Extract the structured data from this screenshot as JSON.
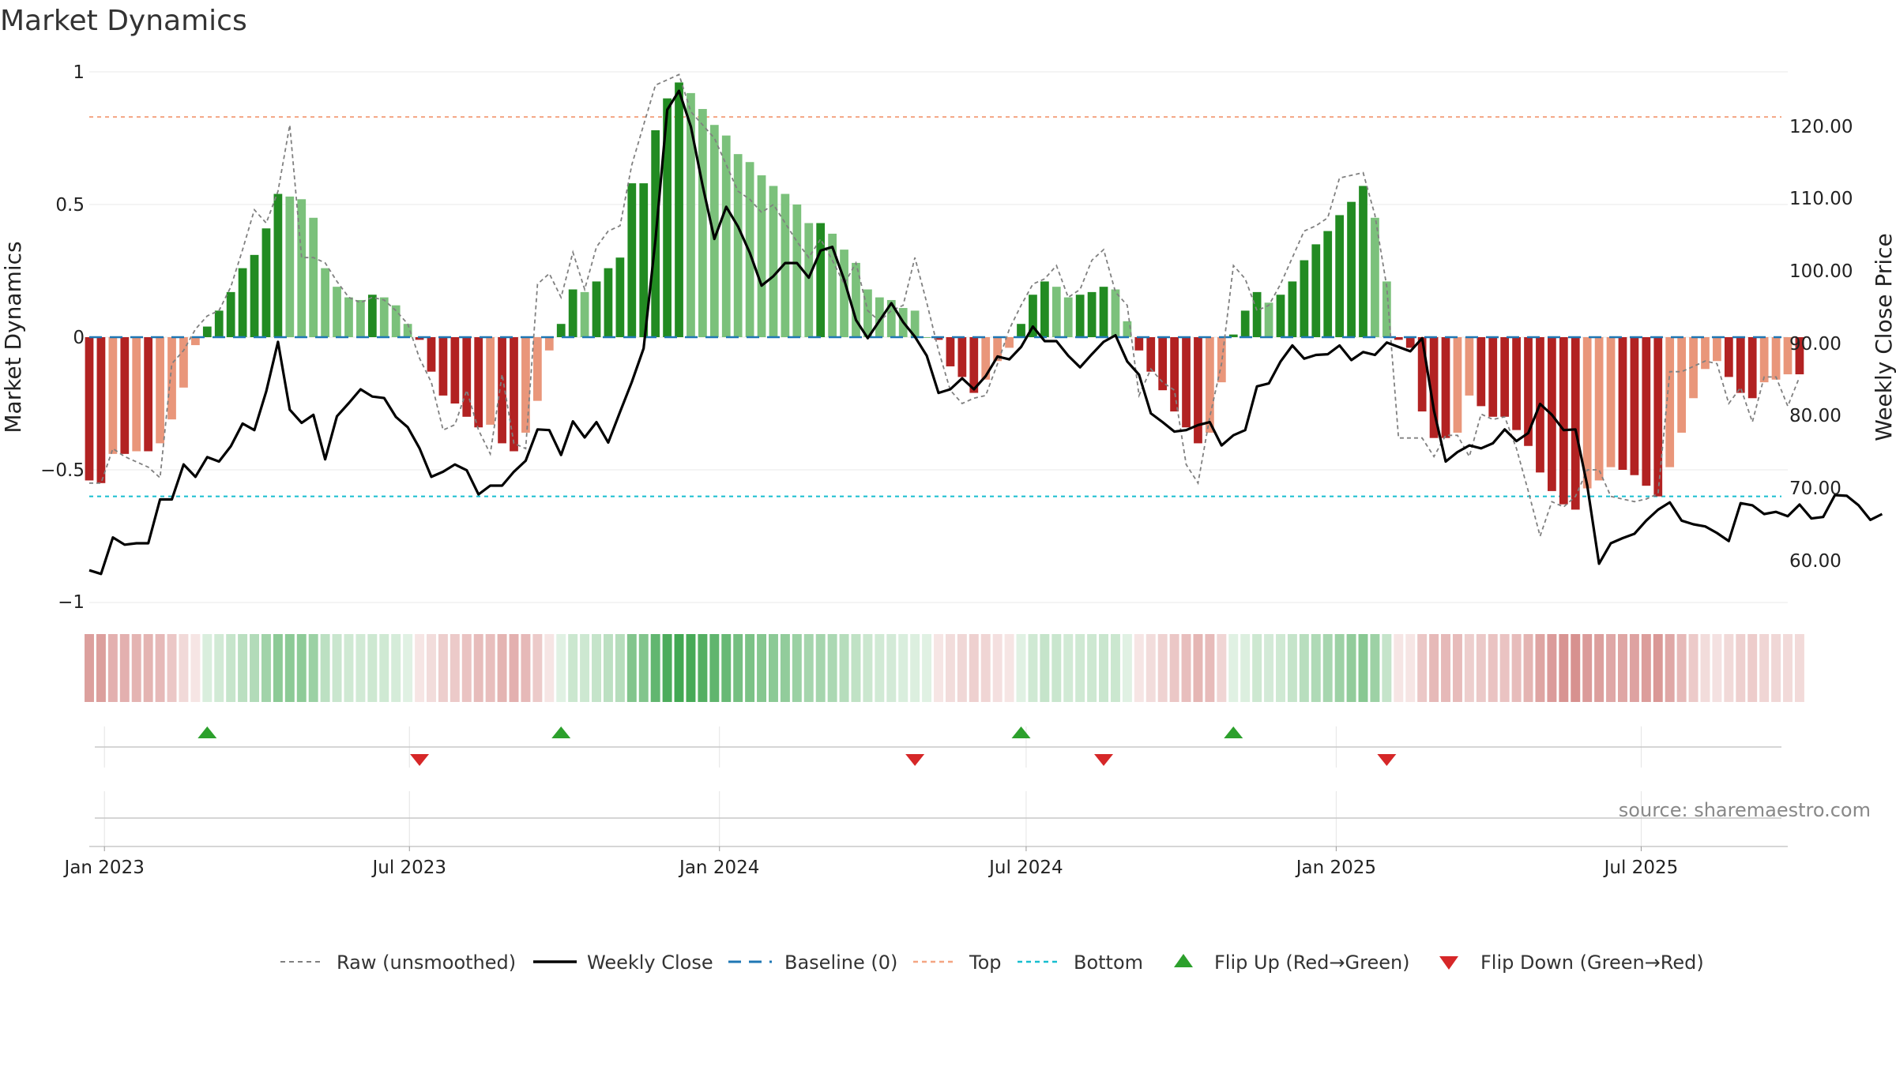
{
  "chart_data": {
    "type": "bar",
    "title": "Market Dynamics",
    "ylabel": "Market Dynamics",
    "y2label": "Weekly Close Price",
    "ylim": [
      -1,
      1
    ],
    "y2lim": [
      53.3,
      125.9
    ],
    "yticks": [
      "1",
      "0.5",
      "0",
      "−0.5",
      "−1"
    ],
    "y2ticks": [
      "120.00",
      "110.00",
      "100.00",
      "90.00",
      "80.00",
      "70.00",
      "60.00"
    ],
    "xticks": [
      "Jan 2023",
      "Jul 2023",
      "Jan 2024",
      "Jul 2024",
      "Jan 2025",
      "Jul 2025"
    ],
    "xtick_dates": [
      "2023-01-01",
      "2023-07-01",
      "2024-01-01",
      "2024-07-01",
      "2025-01-01",
      "2025-07-01"
    ],
    "start_date": "2022-12-23",
    "x_end_date": "2025-09-26",
    "top_level": 0.83,
    "bottom_level": -0.6,
    "legend": [
      "Raw (unsmoothed)",
      "Weekly Close",
      "Baseline (0)",
      "Top",
      "Bottom",
      "Flip Up (Red→Green)",
      "Flip Down (Green→Red)"
    ],
    "source": "source: sharemaestro.com",
    "colors": {
      "strong_green": "#228b22",
      "light_green": "#7bc17b",
      "strong_red": "#b22222",
      "light_red": "#e9967a",
      "baseline": "#1f77b4",
      "top": "#f4a582",
      "bottom": "#17becf",
      "flip_up": "#2ca02c",
      "flip_down": "#d62728"
    },
    "dynamics": [
      -0.54,
      -0.55,
      -0.44,
      -0.44,
      -0.43,
      -0.43,
      -0.4,
      -0.31,
      -0.19,
      -0.03,
      0.04,
      0.1,
      0.17,
      0.26,
      0.31,
      0.41,
      0.54,
      0.53,
      0.52,
      0.45,
      0.26,
      0.19,
      0.15,
      0.14,
      0.16,
      0.15,
      0.12,
      0.05,
      -0.01,
      -0.13,
      -0.22,
      -0.25,
      -0.3,
      -0.34,
      -0.33,
      -0.4,
      -0.43,
      -0.36,
      -0.24,
      -0.05,
      0.05,
      0.18,
      0.17,
      0.21,
      0.26,
      0.3,
      0.58,
      0.58,
      0.78,
      0.9,
      0.96,
      0.92,
      0.86,
      0.8,
      0.76,
      0.69,
      0.66,
      0.61,
      0.57,
      0.54,
      0.5,
      0.43,
      0.43,
      0.39,
      0.33,
      0.28,
      0.18,
      0.15,
      0.14,
      0.11,
      0.1,
      0,
      -0.01,
      -0.11,
      -0.15,
      -0.21,
      -0.16,
      -0.09,
      -0.04,
      0.05,
      0.16,
      0.21,
      0.19,
      0.15,
      0.16,
      0.17,
      0.19,
      0.18,
      0.06,
      -0.05,
      -0.13,
      -0.2,
      -0.28,
      -0.34,
      -0.4,
      -0.36,
      -0.17,
      0.01,
      0.1,
      0.17,
      0.13,
      0.16,
      0.21,
      0.29,
      0.35,
      0.4,
      0.46,
      0.51,
      0.57,
      0.45,
      0.21,
      -0.01,
      -0.04,
      -0.28,
      -0.38,
      -0.38,
      -0.36,
      -0.22,
      -0.26,
      -0.3,
      -0.3,
      -0.35,
      -0.41,
      -0.51,
      -0.58,
      -0.63,
      -0.65,
      -0.57,
      -0.54,
      -0.49,
      -0.5,
      -0.52,
      -0.56,
      -0.6,
      -0.49,
      -0.36,
      -0.23,
      -0.12,
      -0.09,
      -0.15,
      -0.21,
      -0.23,
      -0.17,
      -0.16,
      -0.14,
      -0.14
    ],
    "raw": [
      -0.55,
      -0.55,
      -0.42,
      -0.45,
      -0.47,
      -0.49,
      -0.53,
      -0.1,
      -0.05,
      0.03,
      0.08,
      0.1,
      0.19,
      0.33,
      0.48,
      0.43,
      0.55,
      0.8,
      0.3,
      0.3,
      0.28,
      0.21,
      0.15,
      0.13,
      0.15,
      0.14,
      0.1,
      0.05,
      -0.08,
      -0.17,
      -0.35,
      -0.33,
      -0.2,
      -0.35,
      -0.44,
      -0.14,
      -0.4,
      -0.42,
      0.2,
      0.24,
      0.15,
      0.32,
      0.18,
      0.34,
      0.4,
      0.42,
      0.65,
      0.8,
      0.95,
      0.97,
      0.99,
      0.85,
      0.8,
      0.75,
      0.65,
      0.55,
      0.52,
      0.47,
      0.5,
      0.43,
      0.36,
      0.3,
      0.37,
      0.29,
      0.2,
      0.28,
      0.1,
      0.06,
      0.1,
      0.12,
      0.3,
      0.13,
      -0.05,
      -0.2,
      -0.25,
      -0.23,
      -0.22,
      -0.1,
      0.03,
      0.12,
      0.2,
      0.22,
      0.27,
      0.15,
      0.18,
      0.29,
      0.33,
      0.17,
      0.12,
      -0.22,
      -0.12,
      -0.17,
      -0.2,
      -0.48,
      -0.55,
      -0.3,
      -0.1,
      0.27,
      0.22,
      0.1,
      0.12,
      0.2,
      0.3,
      0.4,
      0.42,
      0.45,
      0.6,
      0.61,
      0.62,
      0.46,
      0.19,
      -0.38,
      -0.38,
      -0.38,
      -0.45,
      -0.37,
      -0.37,
      -0.45,
      -0.29,
      -0.31,
      -0.3,
      -0.42,
      -0.58,
      -0.75,
      -0.62,
      -0.64,
      -0.6,
      -0.5,
      -0.5,
      -0.6,
      -0.61,
      -0.62,
      -0.61,
      -0.59,
      -0.13,
      -0.13,
      -0.11,
      -0.09,
      -0.1,
      -0.25,
      -0.19,
      -0.32,
      -0.15,
      -0.15,
      -0.26,
      -0.15
    ],
    "close": [
      57.5,
      57,
      62,
      61,
      61.2,
      61.2,
      67.2,
      67.2,
      72,
      70.3,
      73,
      72.4,
      74.5,
      77.6,
      76.7,
      82,
      88.8,
      79.5,
      77.7,
      78.8,
      72.7,
      78.6,
      80.4,
      82.3,
      81.3,
      81.1,
      78.5,
      77.1,
      74.2,
      70.3,
      71,
      72,
      71.2,
      67.9,
      69.1,
      69.1,
      71,
      72.5,
      76.8,
      76.7,
      73.3,
      77.9,
      75.7,
      77.8,
      75,
      79.2,
      83.3,
      87.9,
      102.8,
      120.6,
      123.2,
      118.3,
      110.2,
      102.9,
      107.3,
      104.6,
      101,
      96.5,
      97.8,
      99.6,
      99.6,
      97.6,
      101.3,
      101.8,
      97.3,
      91.8,
      89.3,
      91.7,
      94.1,
      91.5,
      89.5,
      86.9,
      81.8,
      82.3,
      83.8,
      82.3,
      84.1,
      86.8,
      86.4,
      88.1,
      90.9,
      88.9,
      88.9,
      86.9,
      85.3,
      87.1,
      88.8,
      89.7,
      86.1,
      84.3,
      79,
      77.8,
      76.5,
      76.7,
      77.4,
      77.8,
      74.6,
      76,
      76.7,
      82.7,
      83.1,
      86.1,
      88.3,
      86.5,
      87,
      87.1,
      88.3,
      86.3,
      87.4,
      87,
      88.7,
      88.1,
      87.5,
      89.3,
      79.4,
      72.4,
      73.7,
      74.6,
      74.2,
      74.9,
      76.8,
      75.2,
      76.3,
      80.3,
      78.8,
      76.7,
      76.8,
      69.1,
      58.4,
      61.2,
      61.9,
      62.5,
      64.3,
      65.8,
      66.8,
      64.3,
      63.8,
      63.5,
      62.6,
      61.5,
      66.7,
      66.4,
      65.2,
      65.5,
      64.9,
      66.5,
      64.6,
      64.8,
      67.8,
      67.7,
      66.4,
      64.4,
      65.2
    ],
    "heatmap_opacity": [
      0.55,
      0.55,
      0.45,
      0.45,
      0.43,
      0.43,
      0.4,
      0.32,
      0.22,
      0.15,
      0.18,
      0.22,
      0.27,
      0.33,
      0.37,
      0.45,
      0.55,
      0.55,
      0.54,
      0.48,
      0.32,
      0.26,
      0.23,
      0.22,
      0.24,
      0.23,
      0.2,
      0.15,
      0.15,
      0.2,
      0.28,
      0.3,
      0.34,
      0.38,
      0.37,
      0.43,
      0.45,
      0.4,
      0.3,
      0.15,
      0.15,
      0.25,
      0.24,
      0.28,
      0.32,
      0.35,
      0.6,
      0.6,
      0.75,
      0.85,
      0.9,
      0.88,
      0.82,
      0.76,
      0.72,
      0.66,
      0.63,
      0.58,
      0.55,
      0.52,
      0.48,
      0.43,
      0.43,
      0.4,
      0.35,
      0.3,
      0.25,
      0.22,
      0.21,
      0.18,
      0.17,
      0.15,
      0.15,
      0.2,
      0.23,
      0.27,
      0.24,
      0.18,
      0.15,
      0.15,
      0.23,
      0.28,
      0.26,
      0.22,
      0.23,
      0.24,
      0.26,
      0.25,
      0.15,
      0.15,
      0.2,
      0.26,
      0.32,
      0.37,
      0.42,
      0.39,
      0.24,
      0.15,
      0.17,
      0.24,
      0.21,
      0.23,
      0.28,
      0.34,
      0.38,
      0.42,
      0.47,
      0.52,
      0.57,
      0.47,
      0.28,
      0.15,
      0.15,
      0.32,
      0.4,
      0.4,
      0.39,
      0.28,
      0.31,
      0.34,
      0.34,
      0.38,
      0.43,
      0.52,
      0.57,
      0.61,
      0.63,
      0.57,
      0.55,
      0.5,
      0.51,
      0.53,
      0.56,
      0.59,
      0.5,
      0.4,
      0.3,
      0.2,
      0.17,
      0.22,
      0.27,
      0.29,
      0.24,
      0.23,
      0.21,
      0.21
    ],
    "flip_up_weeks": [
      10,
      40,
      79,
      97
    ],
    "flip_down_weeks": [
      28,
      70,
      86,
      110
    ]
  }
}
